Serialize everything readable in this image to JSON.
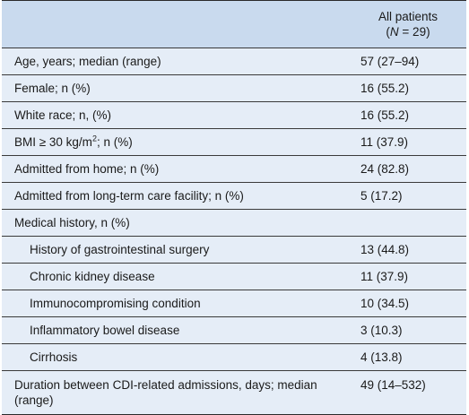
{
  "header": {
    "col_label": "",
    "col_value_line1": "All patients",
    "col_value_open": "(",
    "col_value_n": "N",
    "col_value_rest": " = 29)"
  },
  "rows": [
    {
      "label": "Age, years; median (range)",
      "value": "57 (27–94)"
    },
    {
      "label": "Female; n (%)",
      "value": "16 (55.2)"
    },
    {
      "label": "White race; n, (%)",
      "value": "16 (55.2)"
    },
    {
      "label_pre": "BMI ≥ 30 kg/m",
      "label_sup": "2",
      "label_post": "; n (%)",
      "value": "11 (37.9)"
    },
    {
      "label": "Admitted from home; n (%)",
      "value": "24 (82.8)"
    },
    {
      "label": "Admitted from long-term care facility; n (%)",
      "value": "5 (17.2)"
    },
    {
      "label": "Medical history, n (%)",
      "value": ""
    },
    {
      "label": "History of gastrointestinal surgery",
      "value": "13 (44.8)"
    },
    {
      "label": "Chronic kidney disease",
      "value": "11 (37.9)"
    },
    {
      "label": "Immunocompromising condition",
      "value": "10 (34.5)"
    },
    {
      "label": "Inflammatory bowel disease",
      "value": "3 (10.3)"
    },
    {
      "label": "Cirrhosis",
      "value": "4 (13.8)"
    },
    {
      "label": "Duration between CDI-related admissions, days; median (range)",
      "value": "49 (14–532)"
    }
  ]
}
